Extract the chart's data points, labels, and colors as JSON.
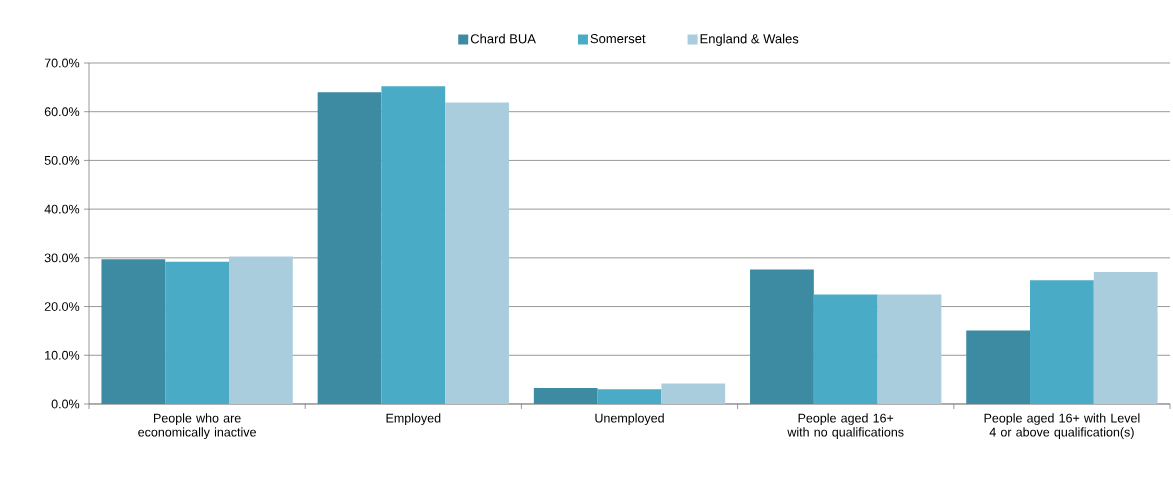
{
  "chart_data": {
    "type": "bar",
    "categories": [
      "People who are economically inactive",
      "Employed",
      "Unemployed",
      "People aged 16+ with no qualifications",
      "People aged 16+ with Level 4 or above qualification(s)"
    ],
    "series": [
      {
        "name": "Chard BUA",
        "color": "#3d8aa3",
        "values": [
          29.7,
          64.0,
          3.3,
          27.6,
          15.1
        ]
      },
      {
        "name": "Somerset",
        "color": "#4aabc6",
        "values": [
          29.2,
          65.2,
          3.0,
          22.5,
          25.4
        ]
      },
      {
        "name": "England & Wales",
        "color": "#a9cddd",
        "values": [
          30.3,
          61.9,
          4.2,
          22.5,
          27.1
        ]
      }
    ],
    "ylim": [
      0,
      70
    ],
    "yticks": [
      {
        "value": 0,
        "label": "0.0%"
      },
      {
        "value": 10,
        "label": "10.0%"
      },
      {
        "value": 20,
        "label": "20.0%"
      },
      {
        "value": 30,
        "label": "30.0%"
      },
      {
        "value": 40,
        "label": "40.0%"
      },
      {
        "value": 50,
        "label": "50.0%"
      },
      {
        "value": 60,
        "label": "60.0%"
      },
      {
        "value": 70,
        "label": "70.0%"
      }
    ],
    "grid": "y",
    "legend": "top"
  }
}
